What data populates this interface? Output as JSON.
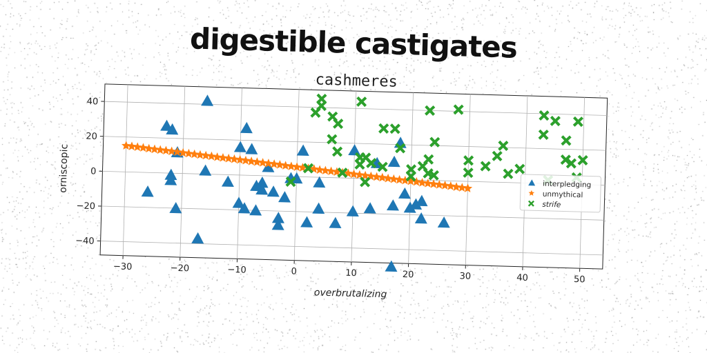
{
  "page_title": "digestible castigates",
  "chart_data": {
    "type": "scatter",
    "title": "cashmeres",
    "xlabel": "overbrutalizing",
    "ylabel": "orniscopic",
    "xlim": [
      -34,
      54
    ],
    "ylim": [
      -48,
      50
    ],
    "xticks": [
      -30,
      -20,
      -10,
      0,
      10,
      20,
      30,
      40,
      50
    ],
    "yticks": [
      -40,
      -20,
      0,
      20,
      40
    ],
    "grid": true,
    "legend_position": "center-right",
    "series": [
      {
        "name": "interpledging",
        "marker": "triangle",
        "color": "#1f77b4",
        "points": [
          [
            -16,
            42
          ],
          [
            -23,
            27
          ],
          [
            -22,
            25
          ],
          [
            -9,
            27
          ],
          [
            -10,
            16
          ],
          [
            -21,
            12
          ],
          [
            -8,
            15
          ],
          [
            1,
            15
          ],
          [
            10,
            16
          ],
          [
            14,
            9
          ],
          [
            17,
            10
          ],
          [
            18,
            21
          ],
          [
            -26,
            -11
          ],
          [
            -22,
            -1
          ],
          [
            -22,
            -4
          ],
          [
            -16,
            2
          ],
          [
            -12,
            -4
          ],
          [
            -7,
            -6
          ],
          [
            -6,
            -4
          ],
          [
            -5,
            5
          ],
          [
            -6,
            -8
          ],
          [
            -4,
            -9
          ],
          [
            -1,
            -1
          ],
          [
            0,
            -1
          ],
          [
            -2,
            -12
          ],
          [
            4,
            -3
          ],
          [
            -10,
            -16
          ],
          [
            -9,
            -19
          ],
          [
            -7,
            -20
          ],
          [
            -3,
            -24
          ],
          [
            -3,
            -28
          ],
          [
            2,
            -26
          ],
          [
            4,
            -18
          ],
          [
            7,
            -26
          ],
          [
            10,
            -19
          ],
          [
            13,
            -17
          ],
          [
            17,
            -15
          ],
          [
            19,
            -8
          ],
          [
            20,
            -16
          ],
          [
            21,
            -14
          ],
          [
            22,
            -12
          ],
          [
            22,
            -22
          ],
          [
            26,
            -24
          ],
          [
            -21,
            -20
          ],
          [
            -17,
            -37
          ],
          [
            17,
            -50
          ]
        ]
      },
      {
        "name": "unmythical",
        "marker": "star",
        "color": "#ff7f0e",
        "points": [
          [
            -30,
            15
          ],
          [
            -29,
            14.7
          ],
          [
            -28,
            14.4
          ],
          [
            -27,
            14.1
          ],
          [
            -26,
            13.7
          ],
          [
            -25,
            13.4
          ],
          [
            -24,
            13.1
          ],
          [
            -23,
            12.8
          ],
          [
            -22,
            12.5
          ],
          [
            -21,
            12.2
          ],
          [
            -20,
            11.8
          ],
          [
            -19,
            11.5
          ],
          [
            -18,
            11.2
          ],
          [
            -17,
            10.9
          ],
          [
            -16,
            10.6
          ],
          [
            -15,
            10.3
          ],
          [
            -14,
            9.9
          ],
          [
            -13,
            9.6
          ],
          [
            -12,
            9.3
          ],
          [
            -11,
            9
          ],
          [
            -10,
            8.7
          ],
          [
            -9,
            8.4
          ],
          [
            -8,
            8
          ],
          [
            -7,
            7.7
          ],
          [
            -6,
            7.4
          ],
          [
            -5,
            7.1
          ],
          [
            -4,
            6.8
          ],
          [
            -3,
            6.5
          ],
          [
            -2,
            6.1
          ],
          [
            -1,
            5.8
          ],
          [
            0,
            5.5
          ],
          [
            1,
            5.2
          ],
          [
            2,
            4.9
          ],
          [
            3,
            4.6
          ],
          [
            4,
            4.2
          ],
          [
            5,
            3.9
          ],
          [
            6,
            3.6
          ],
          [
            7,
            3.3
          ],
          [
            8,
            3
          ],
          [
            9,
            2.7
          ],
          [
            10,
            2.3
          ],
          [
            11,
            2
          ],
          [
            12,
            1.7
          ],
          [
            13,
            1.4
          ],
          [
            14,
            1.1
          ],
          [
            15,
            0.8
          ],
          [
            16,
            0.4
          ],
          [
            17,
            0.1
          ],
          [
            18,
            -0.2
          ],
          [
            19,
            -0.5
          ],
          [
            20,
            -0.8
          ],
          [
            21,
            -1.1
          ],
          [
            22,
            -1.5
          ],
          [
            23,
            -1.8
          ],
          [
            24,
            -2.1
          ],
          [
            25,
            -2.4
          ],
          [
            26,
            -2.7
          ],
          [
            27,
            -3
          ],
          [
            28,
            -3.4
          ],
          [
            29,
            -3.7
          ],
          [
            30,
            -4
          ]
        ]
      },
      {
        "name": "strife",
        "marker": "x",
        "color": "#2ca02c",
        "points": [
          [
            4,
            45
          ],
          [
            4,
            41
          ],
          [
            3,
            37
          ],
          [
            6,
            35
          ],
          [
            7,
            31
          ],
          [
            11,
            44
          ],
          [
            6,
            22
          ],
          [
            7,
            15
          ],
          [
            11,
            12
          ],
          [
            11,
            8
          ],
          [
            12,
            12
          ],
          [
            13,
            9
          ],
          [
            15,
            29
          ],
          [
            17,
            29
          ],
          [
            18,
            18
          ],
          [
            15,
            7
          ],
          [
            20,
            6
          ],
          [
            23,
            40
          ],
          [
            24,
            22
          ],
          [
            28,
            41
          ],
          [
            23,
            12
          ],
          [
            22,
            8
          ],
          [
            23,
            4
          ],
          [
            30,
            12
          ],
          [
            30,
            5
          ],
          [
            33,
            9
          ],
          [
            35,
            15
          ],
          [
            36,
            21
          ],
          [
            39,
            8
          ],
          [
            37,
            5
          ],
          [
            43,
            39
          ],
          [
            45,
            36
          ],
          [
            49,
            36
          ],
          [
            43,
            28
          ],
          [
            47,
            25
          ],
          [
            44,
            2
          ],
          [
            47,
            14
          ],
          [
            48,
            12
          ],
          [
            50,
            14
          ],
          [
            49,
            4
          ],
          [
            -1,
            -3
          ],
          [
            2,
            5
          ],
          [
            8,
            3
          ],
          [
            12,
            -2
          ],
          [
            20,
            2
          ],
          [
            24,
            3
          ]
        ]
      }
    ]
  }
}
